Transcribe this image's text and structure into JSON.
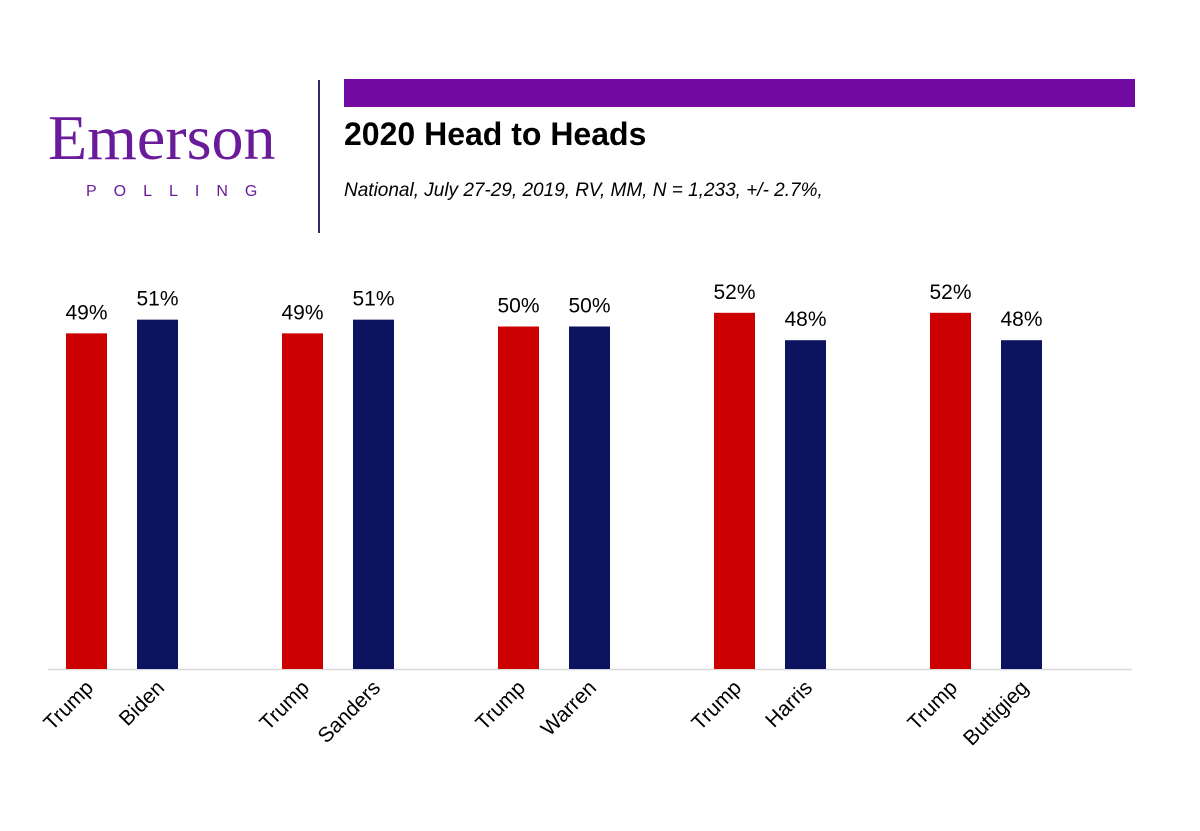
{
  "header": {
    "logo_word": "Emerson",
    "logo_sub": "POLLING",
    "title": "2020 Head to Heads",
    "subtitle": "National, July 27-29, 2019, RV, MM, N = 1,233,  +/- 2.7%,"
  },
  "colors": {
    "brand_purple": "#6a1b9a",
    "accent_bar": "#7209a0",
    "republican": "#cc0000",
    "democrat": "#0c1460"
  },
  "chart_data": {
    "type": "bar",
    "title": "2020 Head to Heads",
    "ylim": [
      0,
      60
    ],
    "value_suffix": "%",
    "grid": false,
    "matchups": [
      {
        "bars": [
          {
            "name": "Trump",
            "value": 49,
            "party": "republican"
          },
          {
            "name": "Biden",
            "value": 51,
            "party": "democrat"
          }
        ]
      },
      {
        "bars": [
          {
            "name": "Trump",
            "value": 49,
            "party": "republican"
          },
          {
            "name": "Sanders",
            "value": 51,
            "party": "democrat"
          }
        ]
      },
      {
        "bars": [
          {
            "name": "Trump",
            "value": 50,
            "party": "republican"
          },
          {
            "name": "Warren",
            "value": 50,
            "party": "democrat"
          }
        ]
      },
      {
        "bars": [
          {
            "name": "Trump",
            "value": 52,
            "party": "republican"
          },
          {
            "name": "Harris",
            "value": 48,
            "party": "democrat"
          }
        ]
      },
      {
        "bars": [
          {
            "name": "Trump",
            "value": 52,
            "party": "republican"
          },
          {
            "name": "Buttigieg",
            "value": 48,
            "party": "democrat"
          }
        ]
      }
    ]
  }
}
